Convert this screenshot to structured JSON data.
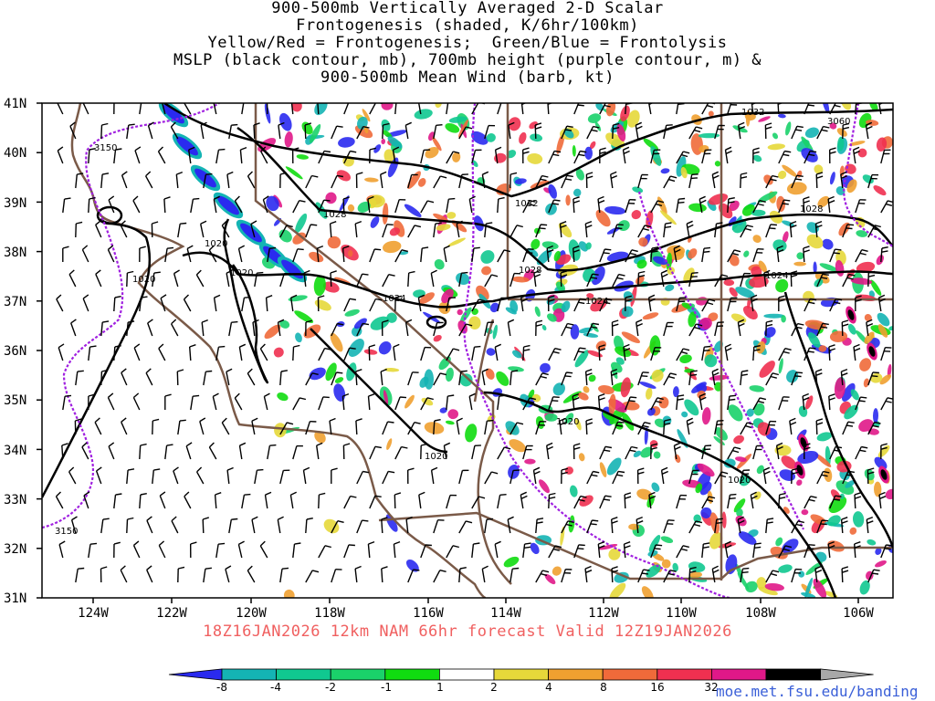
{
  "title_lines": [
    "900-500mb Vertically Averaged 2-D Scalar",
    "Frontogenesis (shaded, K/6hr/100km)",
    "Yellow/Red = Frontogenesis;  Green/Blue = Frontolysis",
    "MSLP (black contour, mb), 700mb height (purple contour, m) &",
    "900-500mb Mean Wind (barb, kt)"
  ],
  "lat_labels": [
    "41N",
    "40N",
    "39N",
    "38N",
    "37N",
    "36N",
    "35N",
    "34N",
    "33N",
    "32N",
    "31N"
  ],
  "lon_labels": [
    "124W",
    "122W",
    "120W",
    "118W",
    "116W",
    "114W",
    "112W",
    "110W",
    "108W",
    "106W"
  ],
  "contour_labels": {
    "mslp": [
      "1020",
      "1020",
      "1020",
      "1028",
      "1024",
      "1028",
      "1032",
      "1024",
      "1024",
      "1028",
      "1032",
      "1020",
      "1020",
      "1020"
    ],
    "height": [
      "3150",
      "3150",
      "3060"
    ]
  },
  "valid_text": "18Z16JAN2026 12km NAM 66hr forecast Valid 12Z19JAN2026",
  "colorbar": {
    "labels": [
      "-8",
      "-4",
      "-2",
      "-1",
      "1",
      "2",
      "4",
      "8",
      "16",
      "32"
    ],
    "colors": [
      "#2a2aef",
      "#14b4b4",
      "#10c890",
      "#1ad26a",
      "#10dc10",
      "#ffffff",
      "#e6d83a",
      "#f0a030",
      "#f06a3a",
      "#f03050",
      "#e01888",
      "#000000",
      "#a8a8a8"
    ]
  },
  "site": "moe.met.fsu.edu/banding"
}
